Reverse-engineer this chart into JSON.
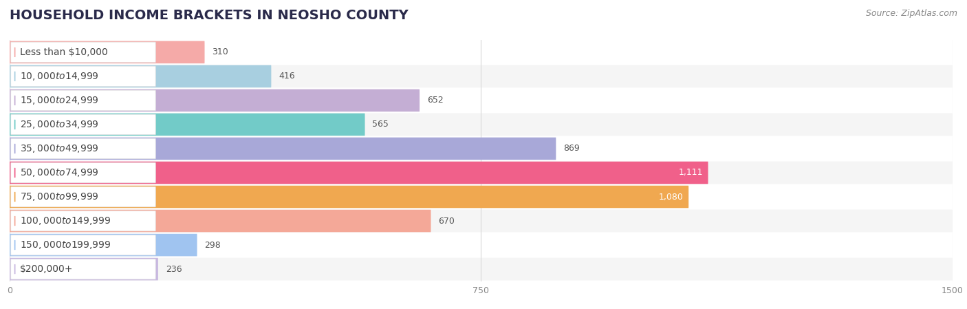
{
  "title": "HOUSEHOLD INCOME BRACKETS IN NEOSHO COUNTY",
  "source": "Source: ZipAtlas.com",
  "categories": [
    "Less than $10,000",
    "$10,000 to $14,999",
    "$15,000 to $24,999",
    "$25,000 to $34,999",
    "$35,000 to $49,999",
    "$50,000 to $74,999",
    "$75,000 to $99,999",
    "$100,000 to $149,999",
    "$150,000 to $199,999",
    "$200,000+"
  ],
  "values": [
    310,
    416,
    652,
    565,
    869,
    1111,
    1080,
    670,
    298,
    236
  ],
  "bar_colors": [
    "#f5aaa8",
    "#a8cfe0",
    "#c4aed4",
    "#72cbc8",
    "#a8a8d8",
    "#f0608a",
    "#f0a850",
    "#f4a898",
    "#a0c4f0",
    "#c8b8e0"
  ],
  "dot_colors": [
    "#f5aaa8",
    "#a8cfe0",
    "#c4aed4",
    "#72cbc8",
    "#a8a8d8",
    "#f0608a",
    "#f0a850",
    "#f4a898",
    "#a0c4f0",
    "#c8b8e0"
  ],
  "xlim": [
    0,
    1500
  ],
  "xticks": [
    0,
    750,
    1500
  ],
  "row_bg_colors": [
    "#ffffff",
    "#f5f5f5"
  ],
  "background_color": "#ffffff",
  "title_fontsize": 14,
  "label_fontsize": 10,
  "source_fontsize": 9,
  "value_fontsize": 9
}
